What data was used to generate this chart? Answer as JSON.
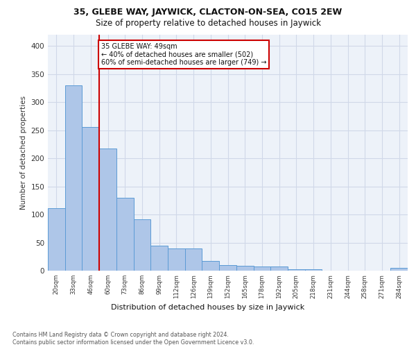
{
  "title1": "35, GLEBE WAY, JAYWICK, CLACTON-ON-SEA, CO15 2EW",
  "title2": "Size of property relative to detached houses in Jaywick",
  "xlabel": "Distribution of detached houses by size in Jaywick",
  "ylabel": "Number of detached properties",
  "bar_labels": [
    "20sqm",
    "33sqm",
    "46sqm",
    "60sqm",
    "73sqm",
    "86sqm",
    "99sqm",
    "112sqm",
    "126sqm",
    "139sqm",
    "152sqm",
    "165sqm",
    "178sqm",
    "192sqm",
    "205sqm",
    "218sqm",
    "231sqm",
    "244sqm",
    "258sqm",
    "271sqm",
    "284sqm"
  ],
  "bar_values": [
    111,
    330,
    256,
    218,
    130,
    91,
    44,
    40,
    40,
    17,
    10,
    9,
    7,
    8,
    3,
    2,
    0,
    0,
    0,
    0,
    5
  ],
  "bar_color": "#aec6e8",
  "bar_edge_color": "#5b9bd5",
  "property_line_x": 2.5,
  "property_line_color": "#cc0000",
  "annotation_line1": "35 GLEBE WAY: 49sqm",
  "annotation_line2": "← 40% of detached houses are smaller (502)",
  "annotation_line3": "60% of semi-detached houses are larger (749) →",
  "annotation_box_color": "#ffffff",
  "annotation_box_edge_color": "#cc0000",
  "footnote": "Contains HM Land Registry data © Crown copyright and database right 2024.\nContains public sector information licensed under the Open Government Licence v3.0.",
  "ylim": [
    0,
    420
  ],
  "yticks": [
    0,
    50,
    100,
    150,
    200,
    250,
    300,
    350,
    400
  ],
  "grid_color": "#d0d8e8",
  "background_color": "#edf2f9"
}
